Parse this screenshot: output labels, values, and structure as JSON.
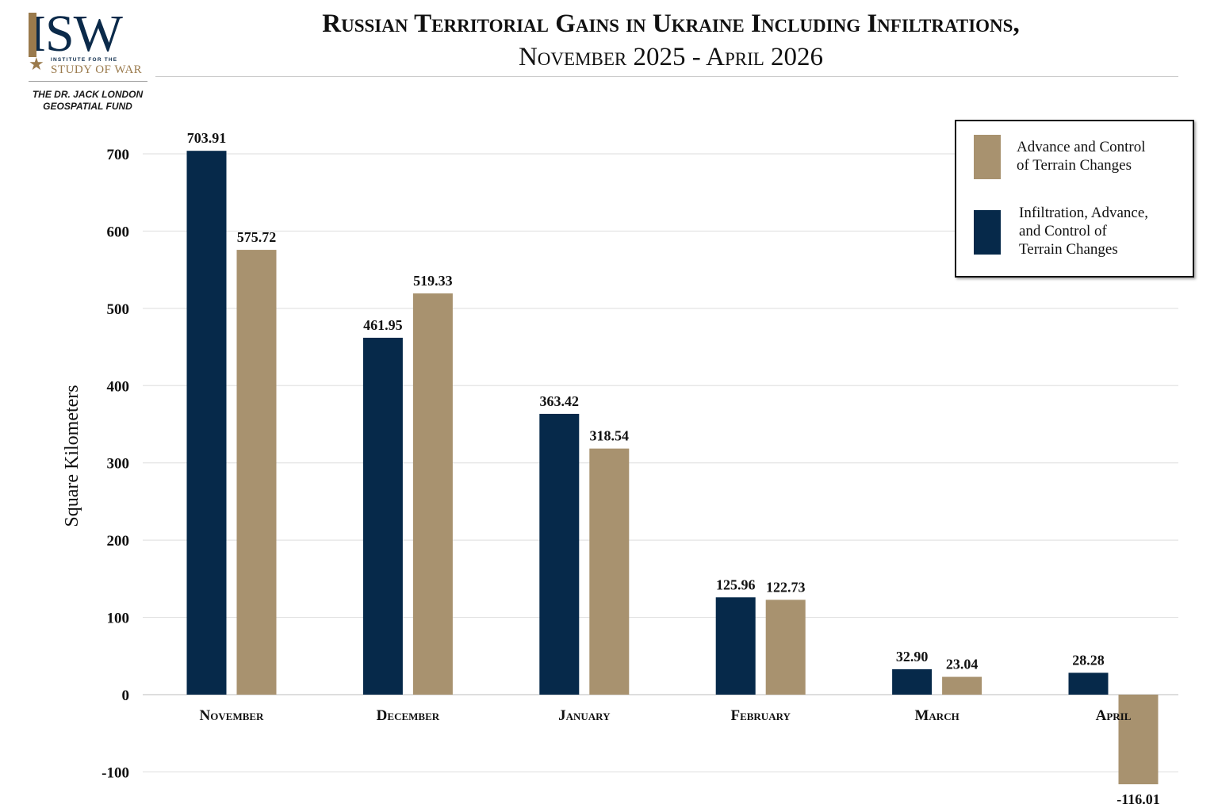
{
  "header": {
    "logo_text": "ISW",
    "logo_small": "INSTITUTE FOR THE",
    "logo_sub": "STUDY OF WAR",
    "fund_line1": "THE DR. JACK LONDON",
    "fund_line2": "GEOSPATIAL FUND",
    "title": "Russian Territorial Gains in Ukraine Including Infiltrations,",
    "subtitle": "November 2025 - April 2026"
  },
  "legend": {
    "entries": [
      {
        "line1": "Advance and Control",
        "line2": "of Terrain Changes",
        "line3": ""
      },
      {
        "line1": "Infiltration, Advance,",
        "line2": "and Control of",
        "line3": "Terrain Changes"
      }
    ]
  },
  "chart_data": {
    "type": "bar",
    "title": "Russian Territorial Gains in Ukraine Including Infiltrations, November 2025 - April 2026",
    "ylabel": "Square Kilometers",
    "xlabel": "",
    "categories": [
      "November",
      "December",
      "January",
      "February",
      "March",
      "April"
    ],
    "ylim": [
      -100,
      700
    ],
    "yticks": [
      -100,
      0,
      100,
      200,
      300,
      400,
      500,
      600,
      700
    ],
    "grid": true,
    "legend_position": "top-right",
    "series": [
      {
        "name": "Infiltration, Advance, and Control of Terrain Changes",
        "color": "#06294a",
        "values": [
          703.91,
          461.95,
          363.42,
          125.96,
          32.9,
          28.28
        ],
        "labels": [
          "703.91",
          "461.95",
          "363.42",
          "125.96",
          "32.90",
          "28.28"
        ]
      },
      {
        "name": "Advance and Control of Terrain Changes",
        "color": "#a8926f",
        "values": [
          575.72,
          519.33,
          318.54,
          122.73,
          23.04,
          -116.01
        ],
        "labels": [
          "575.72",
          "519.33",
          "318.54",
          "122.73",
          "23.04",
          "-116.01"
        ]
      }
    ]
  }
}
